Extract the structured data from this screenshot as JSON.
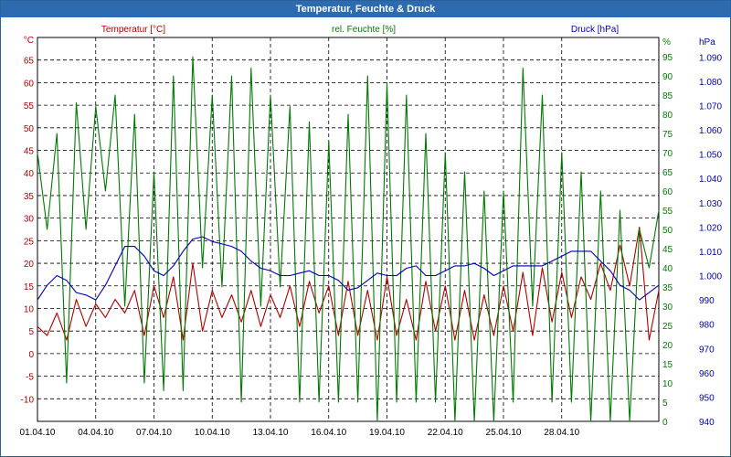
{
  "window": {
    "title": "Temperatur, Feuchte & Druck"
  },
  "colors": {
    "temp": "#b00000",
    "hum": "#007a00",
    "press": "#0000b4",
    "title_bg": "#2d6bb0"
  },
  "chart_data": {
    "type": "line",
    "title": "Temperatur, Feuchte & Druck",
    "xlabel": "",
    "x_tick_labels": [
      "01.04.10",
      "04.04.10",
      "07.04.10",
      "10.04.10",
      "13.04.10",
      "16.04.10",
      "19.04.10",
      "22.04.10",
      "25.04.10",
      "28.04.10"
    ],
    "x_range_days": [
      0,
      32
    ],
    "grid": true,
    "axes": {
      "left": {
        "unit": "°C",
        "label": "Temperatur [°C]",
        "range": [
          -15,
          70
        ],
        "ticks": [
          "-10",
          "-5",
          "0",
          "5",
          "10",
          "15",
          "20",
          "25",
          "30",
          "35",
          "40",
          "45",
          "50",
          "55",
          "60",
          "65"
        ]
      },
      "mid": {
        "unit": "%",
        "label": "rel. Feuchte [%]",
        "range": [
          0,
          100
        ],
        "ticks": [
          "0",
          "5",
          "10",
          "15",
          "20",
          "25",
          "30",
          "35",
          "40",
          "45",
          "50",
          "55",
          "60",
          "65",
          "70",
          "75",
          "80",
          "85",
          "90",
          "95"
        ]
      },
      "right": {
        "unit": "hPa",
        "label": "Druck [hPa]",
        "range": [
          940,
          1098
        ],
        "ticks": [
          "940",
          "950",
          "960",
          "970",
          "980",
          "990",
          "1.000",
          "1.010",
          "1.020",
          "1.030",
          "1.040",
          "1.050",
          "1.060",
          "1.070",
          "1.080",
          "1.090"
        ]
      }
    },
    "series": [
      {
        "name": "Temperatur [°C]",
        "axis": "left",
        "x": [
          0,
          0.5,
          1,
          1.5,
          2,
          2.5,
          3,
          3.5,
          4,
          4.5,
          5,
          5.5,
          6,
          6.5,
          7,
          7.5,
          8,
          8.5,
          9,
          9.5,
          10,
          10.5,
          11,
          11.5,
          12,
          12.5,
          13,
          13.5,
          14,
          14.5,
          15,
          15.5,
          16,
          16.5,
          17,
          17.5,
          18,
          18.5,
          19,
          19.5,
          20,
          20.5,
          21,
          21.5,
          22,
          22.5,
          23,
          23.5,
          24,
          24.5,
          25,
          25.5,
          26,
          26.5,
          27,
          27.5,
          28,
          28.5,
          29,
          29.5,
          30,
          30.5,
          31,
          31.5,
          32
        ],
        "values": [
          6,
          4,
          9,
          3,
          12,
          6,
          11,
          8,
          12,
          9,
          14,
          4,
          15,
          8,
          17,
          3,
          20,
          5,
          14,
          8,
          13,
          7,
          14,
          6,
          13,
          8,
          15,
          6,
          16,
          9,
          15,
          4,
          16,
          4,
          14,
          3,
          17,
          4,
          12,
          3,
          16,
          5,
          15,
          3,
          14,
          3,
          13,
          4,
          15,
          5,
          18,
          4,
          19,
          7,
          18,
          8,
          17,
          12,
          20,
          14,
          24,
          15,
          28,
          3,
          14
        ]
      },
      {
        "name": "rel. Feuchte [%]",
        "axis": "mid",
        "x": [
          0,
          0.5,
          1,
          1.5,
          2,
          2.5,
          3,
          3.5,
          4,
          4.5,
          5,
          5.5,
          6,
          6.5,
          7,
          7.5,
          8,
          8.5,
          9,
          9.5,
          10,
          10.5,
          11,
          11.5,
          12,
          12.5,
          13,
          13.5,
          14,
          14.5,
          15,
          15.5,
          16,
          16.5,
          17,
          17.5,
          18,
          18.5,
          19,
          19.5,
          20,
          20.5,
          21,
          21.5,
          22,
          22.5,
          23,
          23.5,
          24,
          24.5,
          25,
          25.5,
          26,
          26.5,
          27,
          27.5,
          28,
          28.5,
          29,
          29.5,
          30,
          30.5,
          31,
          31.5,
          32
        ],
        "values": [
          70,
          50,
          75,
          10,
          83,
          50,
          82,
          60,
          85,
          30,
          80,
          10,
          65,
          8,
          90,
          8,
          95,
          40,
          85,
          35,
          90,
          5,
          92,
          30,
          85,
          35,
          82,
          5,
          78,
          5,
          73,
          5,
          80,
          5,
          90,
          0,
          88,
          5,
          85,
          5,
          75,
          5,
          70,
          0,
          65,
          0,
          60,
          0,
          60,
          5,
          92,
          30,
          85,
          5,
          70,
          5,
          65,
          0,
          60,
          0,
          55,
          0,
          50,
          40,
          55
        ]
      },
      {
        "name": "Druck [hPa]",
        "axis": "right",
        "x": [
          0,
          0.5,
          1,
          1.5,
          2,
          2.5,
          3,
          3.5,
          4,
          4.5,
          5,
          5.5,
          6,
          6.5,
          7,
          7.5,
          8,
          8.5,
          9,
          9.5,
          10,
          10.5,
          11,
          11.5,
          12,
          12.5,
          13,
          13.5,
          14,
          14.5,
          15,
          15.5,
          16,
          16.5,
          17,
          17.5,
          18,
          18.5,
          19,
          19.5,
          20,
          20.5,
          21,
          21.5,
          22,
          22.5,
          23,
          23.5,
          24,
          24.5,
          25,
          25.5,
          26,
          26.5,
          27,
          27.5,
          28,
          28.5,
          29,
          29.5,
          30,
          30.5,
          31,
          31.5,
          32
        ],
        "values": [
          990,
          996,
          1000,
          998,
          993,
          992,
          990,
          996,
          1004,
          1012,
          1012,
          1008,
          1002,
          1000,
          1004,
          1010,
          1015,
          1016,
          1014,
          1013,
          1012,
          1010,
          1006,
          1003,
          1002,
          1000,
          1000,
          1001,
          1002,
          1000,
          1000,
          998,
          994,
          995,
          998,
          1001,
          1000,
          1000,
          1003,
          1004,
          1000,
          1000,
          1002,
          1004,
          1004,
          1005,
          1003,
          1000,
          1002,
          1004,
          1004,
          1004,
          1004,
          1006,
          1008,
          1010,
          1010,
          1010,
          1006,
          1002,
          996,
          994,
          990,
          993,
          996
        ]
      }
    ]
  }
}
